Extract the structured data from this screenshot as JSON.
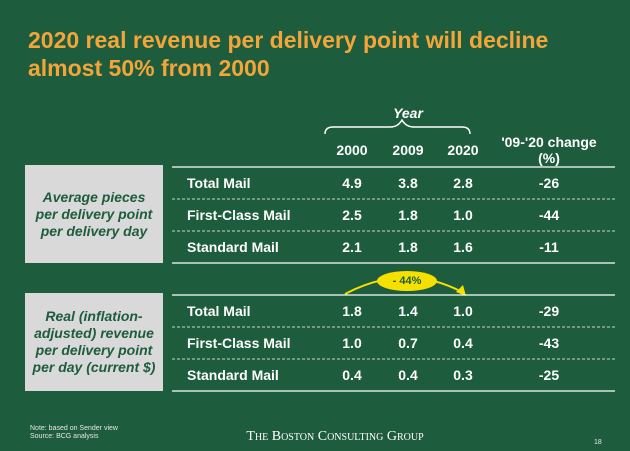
{
  "title": "2020 real revenue per delivery point will decline almost 50% from 2000",
  "table": {
    "year_label": "Year",
    "columns": [
      "2000",
      "2009",
      "2020"
    ],
    "change_header": "'09-'20 change (%)",
    "sections": [
      {
        "label": "Average pieces per delivery point per delivery day",
        "rows": [
          {
            "name": "Total Mail",
            "values": [
              "4.9",
              "3.8",
              "2.8"
            ],
            "change": "-26"
          },
          {
            "name": "First-Class Mail",
            "values": [
              "2.5",
              "1.8",
              "1.0"
            ],
            "change": "-44"
          },
          {
            "name": "Standard Mail",
            "values": [
              "2.1",
              "1.8",
              "1.6"
            ],
            "change": "-11"
          }
        ]
      },
      {
        "label": "Real (inflation-adjusted) revenue per delivery point per day (current $)",
        "rows": [
          {
            "name": "Total Mail",
            "values": [
              "1.8",
              "1.4",
              "1.0"
            ],
            "change": "-29"
          },
          {
            "name": "First-Class Mail",
            "values": [
              "1.0",
              "0.7",
              "0.4"
            ],
            "change": "-43"
          },
          {
            "name": "Standard Mail",
            "values": [
              "0.4",
              "0.4",
              "0.3"
            ],
            "change": "-25"
          }
        ]
      }
    ]
  },
  "annotation": "- 44%",
  "note": "Note: based on Sender view",
  "source": "Source: BCG analysis",
  "footer": "The Boston Consulting Group",
  "page": "18"
}
